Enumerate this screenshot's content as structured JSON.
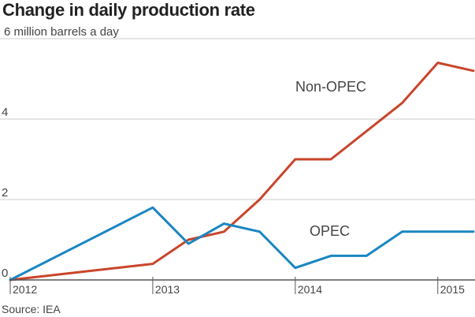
{
  "header": {
    "title": "Change in daily production rate",
    "unit_label": "6 million barrels a day"
  },
  "footer": {
    "source": "Source: IEA"
  },
  "colors": {
    "opec": "#1a86c1",
    "non_opec": "#c9452a",
    "grid": "#cccccc",
    "axis": "#555555",
    "text": "#444444"
  },
  "chart_data": {
    "type": "line",
    "title": "Change in daily production rate",
    "ylabel": "6 million barrels a day",
    "xlabel": "",
    "ylim": [
      0,
      6
    ],
    "xlim": [
      2012,
      2015.25
    ],
    "y_ticks": [
      0,
      2,
      4
    ],
    "x_ticks": [
      {
        "value": 2012,
        "label": "2012"
      },
      {
        "value": 2013,
        "label": "2013"
      },
      {
        "value": 2014,
        "label": "2014"
      },
      {
        "value": 2015,
        "label": "2015"
      }
    ],
    "grid": true,
    "series": [
      {
        "name": "Non-OPEC",
        "color": "#c9452a",
        "points": [
          [
            2012.0,
            0.0
          ],
          [
            2013.0,
            0.4
          ],
          [
            2013.25,
            1.0
          ],
          [
            2013.5,
            1.2
          ],
          [
            2013.75,
            2.0
          ],
          [
            2014.0,
            3.0
          ],
          [
            2014.25,
            3.0
          ],
          [
            2014.5,
            3.7
          ],
          [
            2014.75,
            4.4
          ],
          [
            2015.0,
            5.4
          ],
          [
            2015.25,
            5.2
          ]
        ]
      },
      {
        "name": "OPEC",
        "color": "#1a86c1",
        "points": [
          [
            2012.0,
            0.0
          ],
          [
            2013.0,
            1.8
          ],
          [
            2013.25,
            0.9
          ],
          [
            2013.5,
            1.4
          ],
          [
            2013.75,
            1.2
          ],
          [
            2014.0,
            0.3
          ],
          [
            2014.25,
            0.6
          ],
          [
            2014.5,
            0.6
          ],
          [
            2014.75,
            1.2
          ],
          [
            2015.0,
            1.2
          ],
          [
            2015.25,
            1.2
          ]
        ]
      }
    ]
  }
}
